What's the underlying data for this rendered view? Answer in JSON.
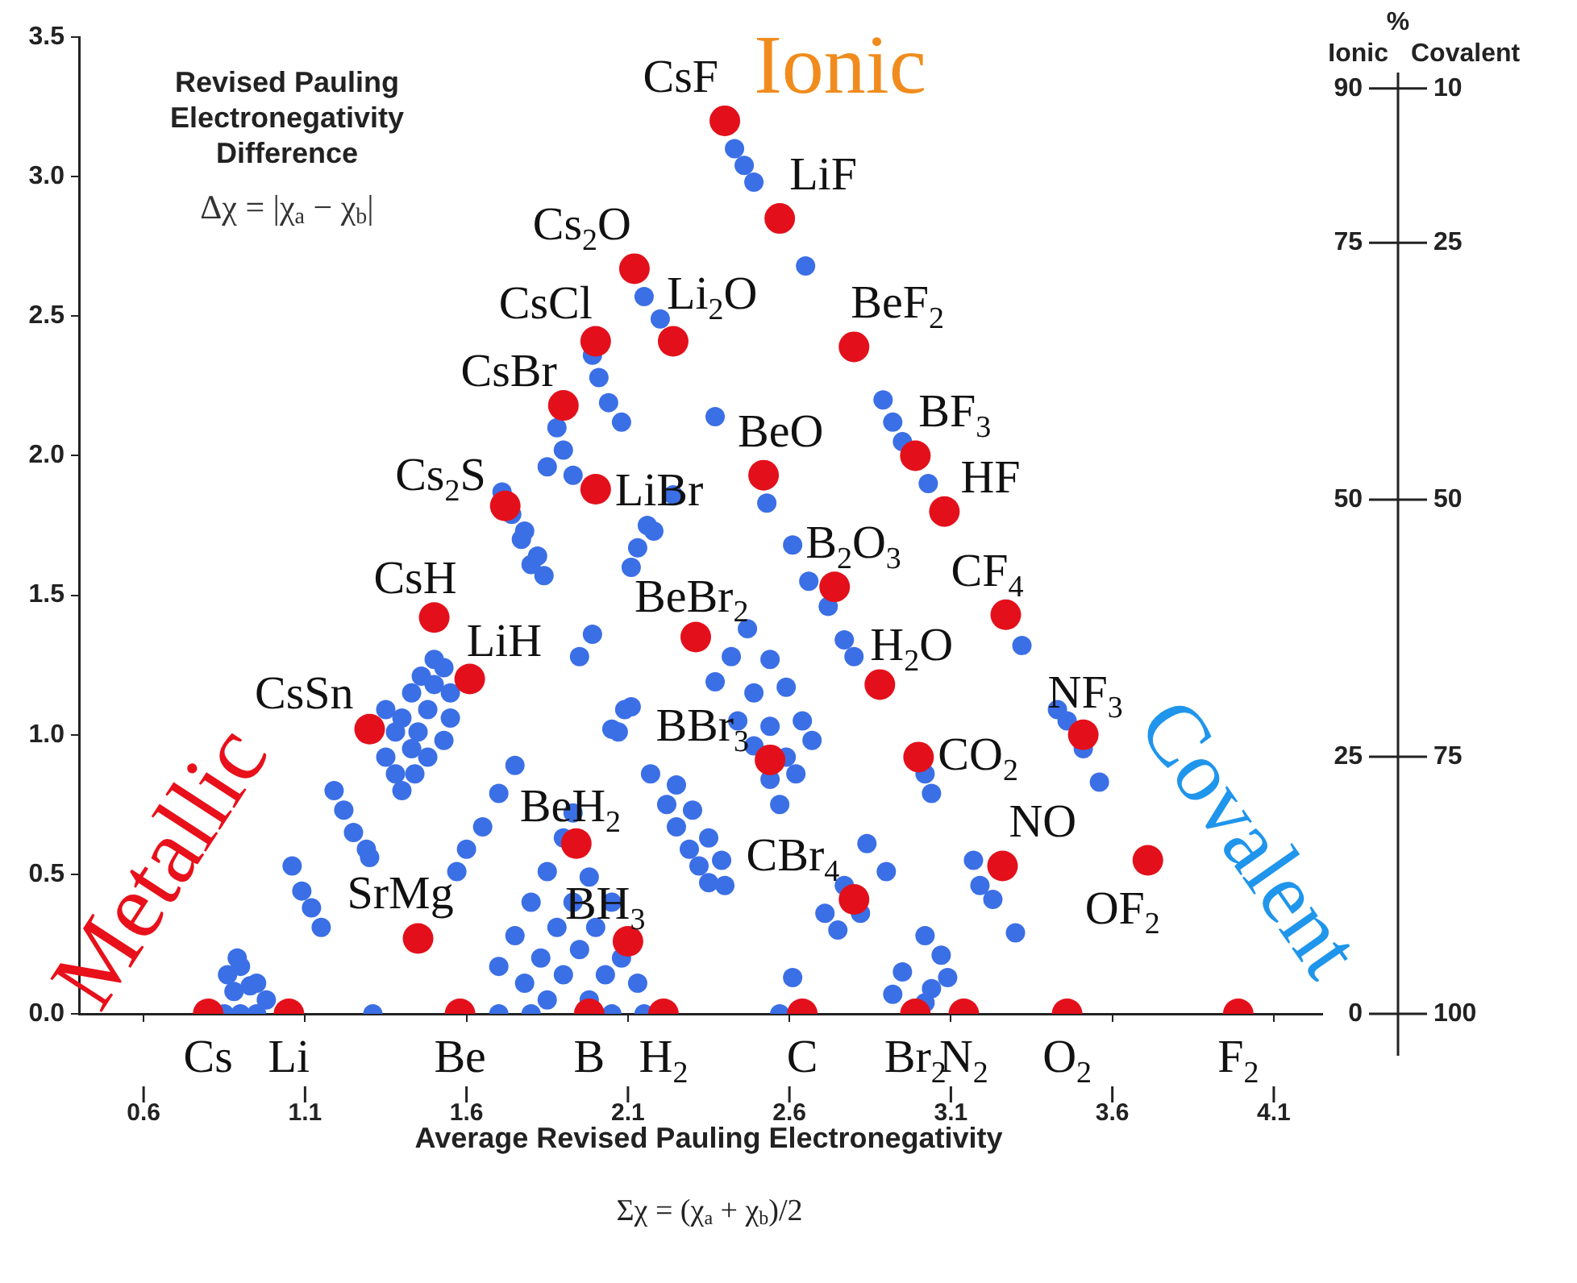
{
  "chart_data": {
    "type": "scatter",
    "ylabel": "Revised Pauling Electronegativity Difference",
    "xlabel": "Average Revised Pauling Electronegativity",
    "annotations": [
      "Δχ = |χ$_{a}$ − χ$_{b}$|",
      "Σχ = (χ$_{a}$ + χ$_{b}$)/2",
      "Ionic",
      "Metallic",
      "Covalent",
      "%",
      {
        "text": "CsF",
        "x": 2.4,
        "y": 3.2
      },
      {
        "text": "LiF",
        "x": 2.57,
        "y": 2.85
      },
      {
        "text": "Cs$_{2}$O",
        "x": 2.12,
        "y": 2.67
      },
      {
        "text": "Li$_{2}$O",
        "x": 2.24,
        "y": 2.41
      },
      {
        "text": "CsCl",
        "x": 2.0,
        "y": 2.41
      },
      {
        "text": "BeF$_{2}$",
        "x": 2.8,
        "y": 2.39
      },
      {
        "text": "CsBr",
        "x": 1.9,
        "y": 2.18
      },
      {
        "text": "BF$_{3}$",
        "x": 2.99,
        "y": 2.0
      },
      {
        "text": "BeO",
        "x": 2.52,
        "y": 1.93
      },
      {
        "text": "LiBr",
        "x": 2.0,
        "y": 1.88
      },
      {
        "text": "HF",
        "x": 3.08,
        "y": 1.8
      },
      {
        "text": "Cs$_{2}$S",
        "x": 1.72,
        "y": 1.82
      },
      {
        "text": "B$_{2}$O$_{3}$",
        "x": 2.74,
        "y": 1.53
      },
      {
        "text": "CF$_{4}$",
        "x": 3.27,
        "y": 1.43
      },
      {
        "text": "BeBr$_{2}$",
        "x": 2.31,
        "y": 1.35
      },
      {
        "text": "H$_{2}$O",
        "x": 2.88,
        "y": 1.18
      },
      {
        "text": "CO$_{2}$",
        "x": 3.0,
        "y": 0.92
      },
      {
        "text": "BBr$_{3}$",
        "x": 2.54,
        "y": 0.91
      },
      {
        "text": "BeH$_{2}$",
        "x": 1.94,
        "y": 0.61
      },
      {
        "text": "NO",
        "x": 3.26,
        "y": 0.53
      },
      {
        "text": "CBr$_{4}$",
        "x": 2.8,
        "y": 0.41
      },
      {
        "text": "BH$_{3}$",
        "x": 2.1,
        "y": 0.26
      },
      {
        "text": "NF$_{3}$",
        "x": 3.51,
        "y": 1.0
      },
      {
        "text": "OF$_{2}$",
        "x": 3.71,
        "y": 0.55
      },
      {
        "text": "CsH",
        "x": 1.5,
        "y": 1.42
      },
      {
        "text": "LiH",
        "x": 1.61,
        "y": 1.2
      },
      {
        "text": "CsSn",
        "x": 1.3,
        "y": 1.02
      },
      {
        "text": "SrMg",
        "x": 1.45,
        "y": 0.27
      },
      {
        "text": "Cs",
        "x": 0.8,
        "y": 0
      },
      {
        "text": "Li",
        "x": 1.05,
        "y": 0
      },
      {
        "text": "Be",
        "x": 1.58,
        "y": 0
      },
      {
        "text": "B",
        "x": 1.98,
        "y": 0
      },
      {
        "text": "H$_{2}$",
        "x": 2.21,
        "y": 0
      },
      {
        "text": "C",
        "x": 2.64,
        "y": 0
      },
      {
        "text": "Br$_{2}$",
        "x": 2.99,
        "y": 0
      },
      {
        "text": "N$_{2}$",
        "x": 3.14,
        "y": 0
      },
      {
        "text": "O$_{2}$",
        "x": 3.46,
        "y": 0
      },
      {
        "text": "F$_{2}$",
        "x": 3.99,
        "y": 0
      }
    ],
    "xlim": [
      0.4,
      4.25
    ],
    "xticks": [
      0.6,
      1.1,
      1.6,
      2.1,
      2.6,
      3.1,
      3.6,
      4.1
    ],
    "ylim": [
      0,
      3.5
    ],
    "yticks": [
      {
        "value": 0,
        "label": "0.0"
      },
      0.5,
      {
        "value": 1,
        "label": "1.0"
      },
      1.5,
      {
        "value": 2,
        "label": "2.0"
      },
      2.5,
      {
        "value": 3,
        "label": "3.0"
      },
      3.5
    ],
    "y2lim": [
      0,
      95
    ],
    "y2label": "Ionic",
    "y2ticks": [
      90,
      75,
      50,
      25,
      0
    ],
    "y3lim": [
      100,
      5
    ],
    "y3label": "Covalent",
    "y3ticks": [
      10,
      25,
      50,
      75,
      100
    ],
    "grid": false,
    "marker": "circle",
    "series": [
      {
        "color": "#e3101b",
        "x": [
          2.4,
          2.57,
          2.12,
          2.24,
          2.0,
          2.8,
          1.9,
          2.99,
          2.52,
          2.0,
          3.08,
          1.72,
          2.74,
          3.27,
          2.31,
          2.88,
          3.0,
          2.54,
          1.94,
          3.26,
          2.8,
          2.1,
          3.51,
          3.71,
          1.5,
          1.61,
          1.3,
          1.45,
          0.8,
          1.05,
          1.58,
          1.98,
          2.21,
          2.64,
          2.99,
          3.14,
          3.46,
          3.99
        ],
        "values": [
          3.2,
          2.85,
          2.67,
          2.41,
          2.41,
          2.39,
          2.18,
          2.0,
          1.93,
          1.88,
          1.8,
          1.82,
          1.53,
          1.43,
          1.35,
          1.18,
          0.92,
          0.91,
          0.61,
          0.53,
          0.41,
          0.26,
          1.0,
          0.55,
          1.42,
          1.2,
          1.02,
          0.27,
          0,
          0,
          0,
          0,
          0,
          0,
          0,
          0,
          0,
          0
        ]
      },
      {
        "color": "#3b6fe6",
        "x": [
          0.85,
          0.9,
          0.95,
          0.88,
          0.93,
          0.9,
          0.89,
          0.95,
          0.98,
          0.86,
          1.06,
          1.09,
          1.12,
          1.15,
          1.19,
          1.22,
          1.25,
          1.29,
          1.3,
          1.35,
          1.38,
          1.4,
          1.43,
          1.45,
          1.48,
          1.5,
          1.53,
          1.4,
          1.43,
          1.46,
          1.5,
          1.55,
          1.55,
          1.53,
          1.48,
          1.38,
          1.35,
          1.44,
          1.75,
          1.7,
          1.65,
          1.6,
          1.57,
          1.31,
          1.7,
          1.75,
          1.8,
          1.85,
          1.9,
          1.93,
          1.78,
          1.83,
          1.88,
          1.93,
          1.98,
          1.85,
          1.9,
          1.95,
          2.0,
          2.05,
          1.98,
          2.03,
          2.08,
          2.13,
          2.15,
          2.05,
          1.8,
          1.7,
          1.71,
          1.74,
          1.77,
          1.8,
          1.88,
          1.9,
          1.93,
          1.85,
          1.99,
          2.01,
          2.04,
          2.08,
          2.15,
          2.2,
          2.43,
          2.46,
          2.49,
          2.65,
          2.89,
          2.92,
          2.95,
          3.03,
          2.24,
          2.18,
          2.37,
          2.53,
          2.07,
          2.09,
          1.78,
          1.82,
          1.84,
          2.16,
          2.13,
          2.11,
          1.99,
          1.95,
          2.61,
          2.66,
          2.72,
          2.77,
          2.8,
          2.47,
          2.54,
          2.59,
          2.64,
          2.67,
          2.42,
          2.49,
          2.54,
          2.59,
          2.62,
          2.37,
          2.44,
          2.49,
          2.54,
          2.57,
          2.05,
          2.11,
          2.17,
          2.22,
          2.25,
          2.29,
          2.32,
          2.35,
          2.4,
          2.25,
          2.3,
          2.35,
          2.39,
          2.71,
          2.75,
          2.82,
          2.84,
          2.9,
          2.77,
          2.57,
          2.61,
          2.92,
          2.95,
          3.02,
          3.07,
          3.09,
          3.04,
          3.02,
          3.04,
          3.02,
          3.32,
          3.17,
          3.19,
          3.23,
          3.3,
          3.43,
          3.46,
          3.51,
          3.56
        ],
        "values": [
          0,
          0,
          0,
          0.08,
          0.1,
          0.17,
          0.2,
          0.11,
          0.05,
          0.14,
          0.53,
          0.44,
          0.38,
          0.31,
          0.8,
          0.73,
          0.65,
          0.59,
          0.56,
          0.92,
          0.86,
          0.8,
          0.95,
          1.01,
          1.09,
          1.18,
          1.24,
          1.06,
          1.15,
          1.21,
          1.27,
          1.15,
          1.06,
          0.98,
          0.92,
          1.01,
          1.09,
          0.86,
          0.89,
          0.79,
          0.67,
          0.59,
          0.51,
          0,
          0.17,
          0.28,
          0.4,
          0.51,
          0.63,
          0.72,
          0.11,
          0.2,
          0.31,
          0.4,
          0.49,
          0.05,
          0.14,
          0.23,
          0.31,
          0.4,
          0.05,
          0.14,
          0.2,
          0.11,
          0,
          0,
          0,
          0,
          1.87,
          1.79,
          1.7,
          1.61,
          2.1,
          2.02,
          1.93,
          1.96,
          2.36,
          2.28,
          2.19,
          2.12,
          2.57,
          2.49,
          3.1,
          3.04,
          2.98,
          2.68,
          2.2,
          2.12,
          2.05,
          1.9,
          1.86,
          1.73,
          2.14,
          1.83,
          1.01,
          1.09,
          1.73,
          1.64,
          1.57,
          1.75,
          1.67,
          1.6,
          1.36,
          1.28,
          1.68,
          1.55,
          1.46,
          1.34,
          1.28,
          1.38,
          1.27,
          1.17,
          1.05,
          0.98,
          1.28,
          1.15,
          1.03,
          0.92,
          0.86,
          1.19,
          1.05,
          0.96,
          0.84,
          0.75,
          1.02,
          1.1,
          0.86,
          0.75,
          0.67,
          0.59,
          0.53,
          0.47,
          0.46,
          0.82,
          0.73,
          0.63,
          0.55,
          0.36,
          0.3,
          0.36,
          0.61,
          0.51,
          0.46,
          0,
          0.13,
          0.07,
          0.15,
          0.28,
          0.21,
          0.13,
          0.09,
          0.04,
          0.79,
          0.86,
          1.32,
          0.55,
          0.46,
          0.41,
          0.29,
          1.09,
          1.05,
          0.95,
          0.83
        ]
      }
    ]
  }
}
